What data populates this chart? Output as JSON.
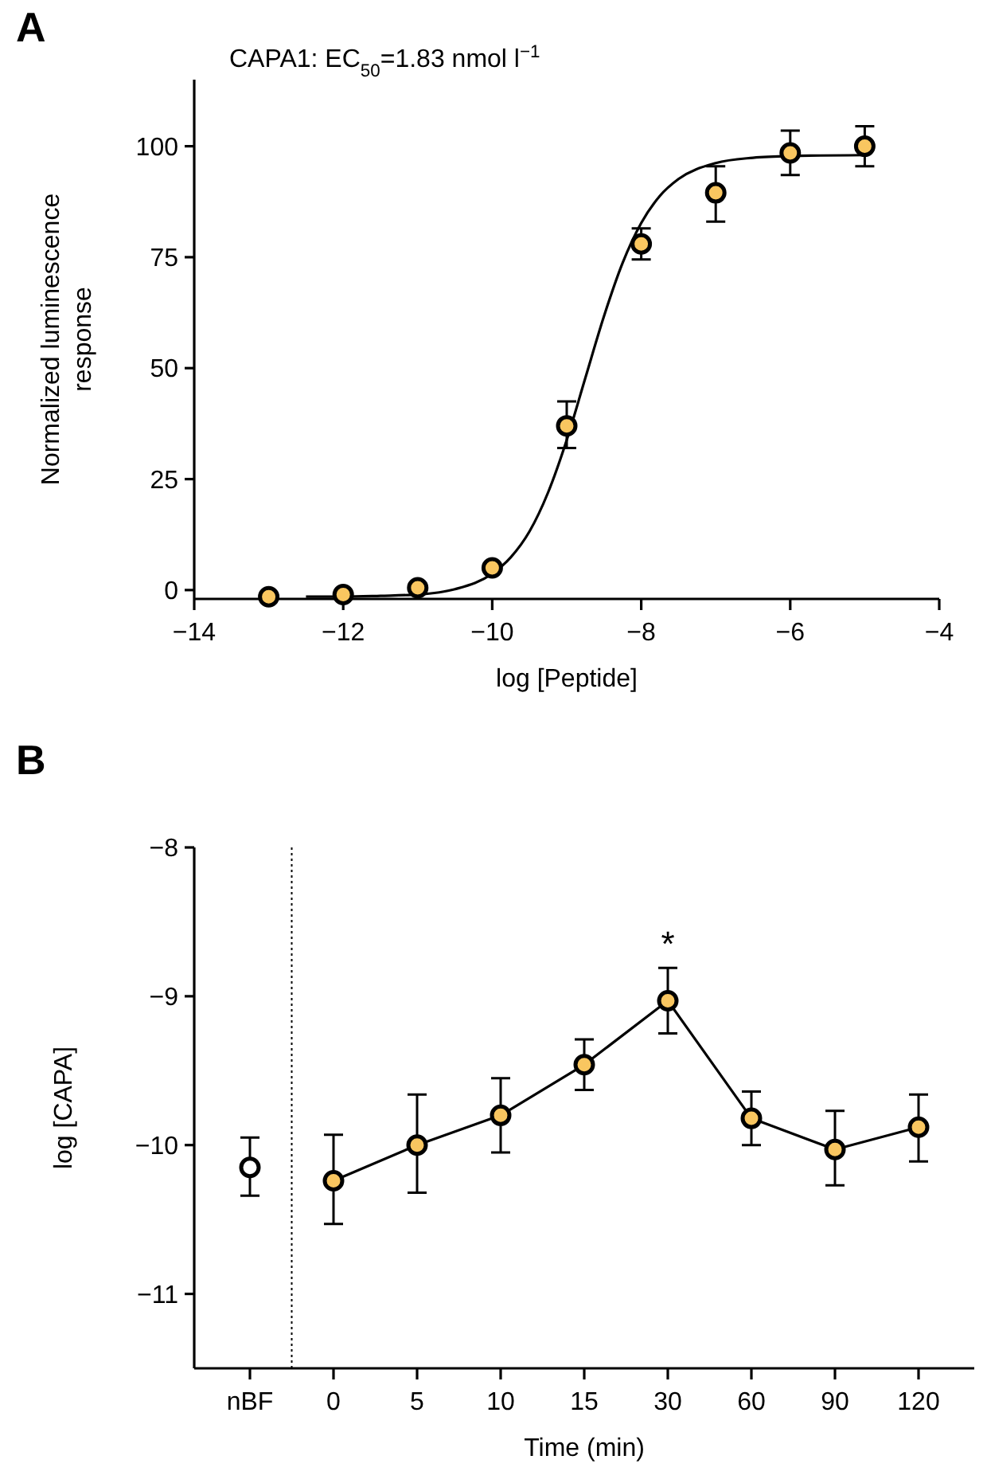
{
  "chart_data": [
    {
      "type": "scatter",
      "title": "CAPA1: EC$_{50}$=1.83 nmol l$^{−1}$",
      "xlabel": "log [Peptide]",
      "ylabel": "Normalized luminescence response",
      "annotations": [
        "A"
      ],
      "xlim": [
        -14,
        -4
      ],
      "xticks": [
        {
          "value": -14,
          "label": "−14"
        },
        {
          "value": -12,
          "label": "−12"
        },
        {
          "value": -10,
          "label": "−10"
        },
        {
          "value": -8,
          "label": "−8"
        },
        {
          "value": -6,
          "label": "−6"
        },
        {
          "value": -4,
          "label": "−4"
        }
      ],
      "ylim": [
        -2,
        115
      ],
      "yticks": [
        0,
        25,
        50,
        75,
        100
      ],
      "grid": false,
      "marker": "circle",
      "series": [
        {
          "color": "#f9c660",
          "x": [
            -13,
            -12,
            -11,
            -10,
            -9,
            -8,
            -7,
            -6,
            -5
          ],
          "values": [
            -1.5,
            -1,
            0.5,
            5,
            37,
            78,
            89.5,
            98.5,
            100
          ],
          "errors": [
            null,
            null,
            null,
            null,
            [
              32,
              42.5
            ],
            [
              74.5,
              81.5
            ],
            [
              83,
              95.5
            ],
            [
              93.5,
              103.5
            ],
            [
              95.5,
              104.5
            ]
          ]
        },
        {
          "type": "line",
          "color": "#000000",
          "marker": "none",
          "x": [
            -12.5,
            -12,
            -11.5,
            -11,
            -10.5,
            -10,
            -9.75,
            -9.5,
            -9.25,
            -9,
            -8.75,
            -8.5,
            -8.25,
            -8,
            -7.75,
            -7.5,
            -7,
            -6.5,
            -6,
            -5
          ],
          "values": [
            -1.5,
            -1.5,
            -1.3,
            -1.0,
            0.2,
            3.7,
            7.4,
            13.2,
            22,
            33.8,
            47.8,
            61.7,
            73.7,
            82.7,
            88.8,
            92.6,
            96.2,
            97.4,
            97.8,
            98
          ]
        }
      ]
    },
    {
      "type": "line",
      "xlabel": "Time (min)",
      "ylabel": "log [CAPA]",
      "annotations": [
        "B",
        {
          "text": "*",
          "x": "30",
          "y": -9.03
        }
      ],
      "categories": [
        "nBF",
        "0",
        "5",
        "10",
        "15",
        "30",
        "60",
        "90",
        "120"
      ],
      "ylim": [
        -11.5,
        -8
      ],
      "yticks": [
        {
          "value": -8,
          "label": "−8"
        },
        {
          "value": -9,
          "label": "−9"
        },
        {
          "value": -10,
          "label": "−10"
        },
        {
          "value": -11,
          "label": "−11"
        }
      ],
      "grid": false,
      "marker": "circle",
      "series": [
        {
          "color": "#000000",
          "marker": "none",
          "values": [
            null,
            -10.24,
            -10.0,
            -9.8,
            -9.46,
            -9.03,
            -9.82,
            -10.03,
            -9.88
          ]
        },
        {
          "type": "scatter",
          "color": "#f9c660",
          "values": [
            null,
            -10.24,
            -10.0,
            -9.8,
            -9.46,
            -9.03,
            -9.82,
            -10.03,
            -9.88
          ],
          "errors": [
            null,
            [
              -10.53,
              -9.93
            ],
            [
              -10.32,
              -9.66
            ],
            [
              -10.05,
              -9.55
            ],
            [
              -9.63,
              -9.29
            ],
            [
              -9.25,
              -8.81
            ],
            [
              -10.0,
              -9.64
            ],
            [
              -10.27,
              -9.77
            ],
            [
              -10.11,
              -9.66
            ]
          ]
        },
        {
          "type": "scatter",
          "color": "#ffffff",
          "values": [
            -10.15,
            null,
            null,
            null,
            null,
            null,
            null,
            null,
            null
          ],
          "errors": [
            [
              -10.34,
              -9.95
            ],
            null,
            null,
            null,
            null,
            null,
            null,
            null,
            null
          ]
        }
      ]
    }
  ]
}
